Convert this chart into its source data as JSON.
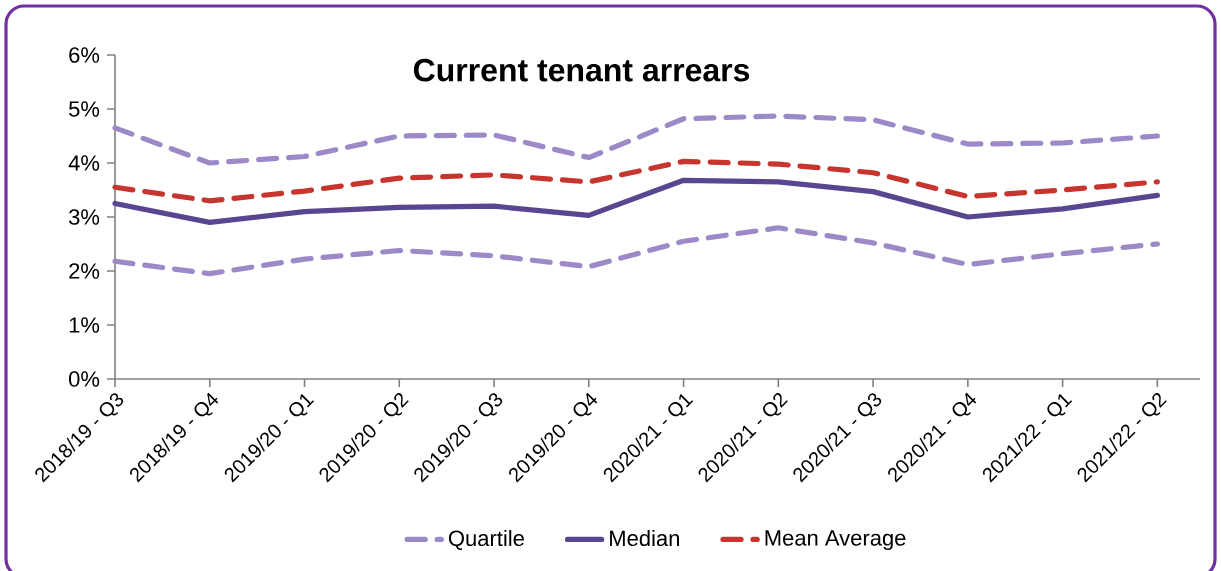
{
  "chart_data": {
    "type": "line",
    "title": "Current tenant arrears",
    "categories": [
      "2018/19 - Q3",
      "2018/19 - Q4",
      "2019/20 - Q1",
      "2019/20 - Q2",
      "2019/20 - Q3",
      "2019/20 - Q4",
      "2020/21 - Q1",
      "2020/21 - Q2",
      "2020/21 - Q3",
      "2020/21 - Q4",
      "2021/22 - Q1",
      "2021/22 - Q2"
    ],
    "series": [
      {
        "name": "Quartile",
        "color": "#9c8ac8",
        "line_style": "dashed",
        "values": [
          4.65,
          4.0,
          4.12,
          4.5,
          4.52,
          4.1,
          4.82,
          4.87,
          4.8,
          4.35,
          4.37,
          4.5
        ]
      },
      {
        "name": "Median",
        "color": "#584790",
        "line_style": "solid",
        "values": [
          3.25,
          2.9,
          3.1,
          3.18,
          3.2,
          3.03,
          3.68,
          3.65,
          3.47,
          3.0,
          3.15,
          3.4
        ]
      },
      {
        "name": "Mean Average",
        "color": "#c7362e",
        "line_style": "dashed",
        "values": [
          3.55,
          3.3,
          3.48,
          3.72,
          3.78,
          3.65,
          4.03,
          3.98,
          3.82,
          3.38,
          3.5,
          3.65
        ]
      },
      {
        "color": "#9c8ac8",
        "line_style": "dashed",
        "values": [
          2.18,
          1.95,
          2.22,
          2.38,
          2.28,
          2.08,
          2.55,
          2.8,
          2.52,
          2.12,
          2.32,
          2.5
        ]
      }
    ],
    "ylim": [
      0,
      6
    ],
    "yticks": [
      {
        "value": 0,
        "label": "0%"
      },
      {
        "value": 1,
        "label": "1%"
      },
      {
        "value": 2,
        "label": "2%"
      },
      {
        "value": 3,
        "label": "3%"
      },
      {
        "value": 4,
        "label": "4%"
      },
      {
        "value": 5,
        "label": "5%"
      },
      {
        "value": 6,
        "label": "6%"
      }
    ],
    "grid": false,
    "legend": "bottom",
    "marker": "none"
  }
}
